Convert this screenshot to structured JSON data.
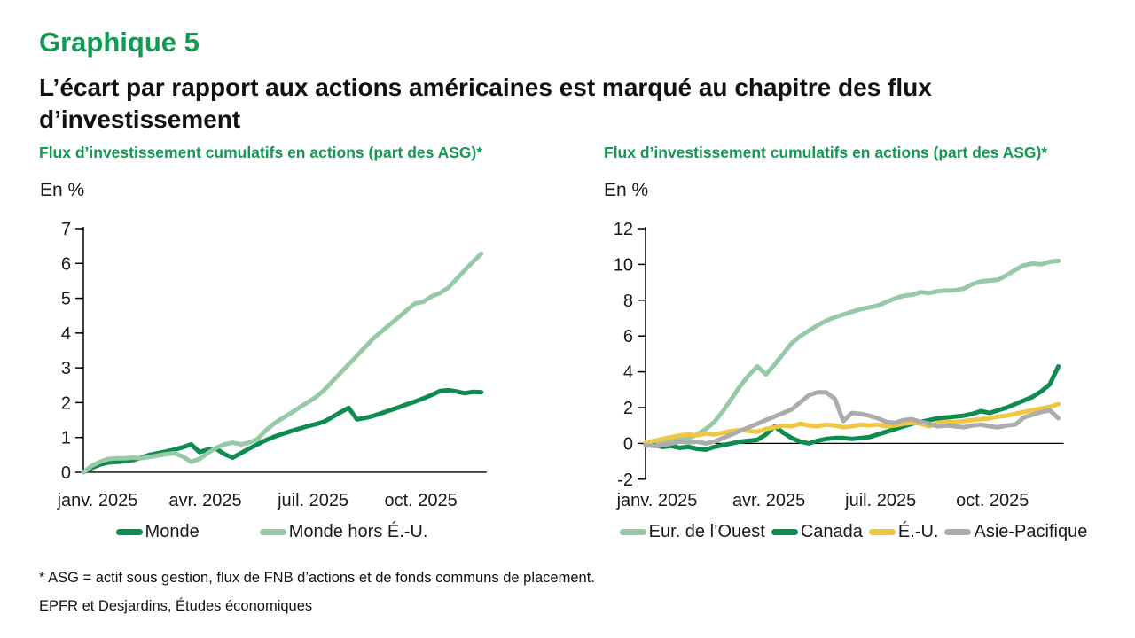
{
  "page": {
    "label": "Graphique 5",
    "title": "L’écart par rapport aux actions américaines est marqué au chapitre des flux d’investissement",
    "footnote": "* ASG = actif sous gestion, flux de FNB d’actions et de fonds communs de placement.",
    "source": "EPFR et Desjardins, Études économiques"
  },
  "colors": {
    "title_green": "#119A50",
    "dark_green": "#0E8B4F",
    "light_green": "#96C9A5",
    "yellow": "#EFC743",
    "gray": "#ACACAC",
    "axis_black": "#000000",
    "text_black": "#1A1A1A"
  },
  "chart_data": [
    {
      "type": "line",
      "title": "Flux d’investissement cumulatifs en actions (part des ASG)*",
      "unit_label": "En %",
      "x_frequency": "weekly",
      "x_tick_labels": [
        "janv. 2025",
        "avr. 2025",
        "juil. 2025",
        "oct. 2025"
      ],
      "x_tick_weeks": [
        0,
        13,
        26,
        39
      ],
      "ylim": [
        0,
        7
      ],
      "y_ticks": [
        0,
        1,
        2,
        3,
        4,
        5,
        6,
        7
      ],
      "grid": false,
      "legend_position": "bottom",
      "series": [
        {
          "name": "Monde",
          "color_key": "dark_green",
          "values": [
            0,
            0.12,
            0.22,
            0.28,
            0.3,
            0.32,
            0.35,
            0.42,
            0.5,
            0.55,
            0.6,
            0.65,
            0.72,
            0.8,
            0.58,
            0.65,
            0.68,
            0.52,
            0.42,
            0.55,
            0.68,
            0.8,
            0.92,
            1.02,
            1.1,
            1.18,
            1.25,
            1.32,
            1.38,
            1.45,
            1.58,
            1.72,
            1.85,
            1.52,
            1.56,
            1.62,
            1.7,
            1.78,
            1.86,
            1.95,
            2.03,
            2.12,
            2.22,
            2.33,
            2.36,
            2.32,
            2.27,
            2.31,
            2.3
          ]
        },
        {
          "name": "Monde hors É.-U.",
          "color_key": "light_green",
          "values": [
            0,
            0.18,
            0.3,
            0.38,
            0.4,
            0.4,
            0.42,
            0.4,
            0.44,
            0.48,
            0.52,
            0.55,
            0.45,
            0.3,
            0.38,
            0.55,
            0.7,
            0.8,
            0.85,
            0.8,
            0.85,
            0.95,
            1.2,
            1.4,
            1.55,
            1.7,
            1.85,
            2.0,
            2.15,
            2.35,
            2.6,
            2.85,
            3.1,
            3.35,
            3.6,
            3.85,
            4.05,
            4.25,
            4.45,
            4.65,
            4.85,
            4.9,
            5.05,
            5.15,
            5.3,
            5.55,
            5.8,
            6.05,
            6.28
          ]
        }
      ]
    },
    {
      "type": "line",
      "title": "Flux d’investissement cumulatifs en actions (part des ASG)*",
      "unit_label": "En %",
      "x_frequency": "weekly",
      "x_tick_labels": [
        "janv. 2025",
        "avr. 2025",
        "juil. 2025",
        "oct. 2025"
      ],
      "x_tick_weeks": [
        0,
        13,
        26,
        39
      ],
      "ylim": [
        -2,
        12
      ],
      "y_ticks": [
        -2,
        0,
        2,
        4,
        6,
        8,
        10,
        12
      ],
      "grid": false,
      "legend_position": "bottom",
      "series": [
        {
          "name": "Eur. de l’Ouest",
          "color_key": "light_green",
          "values": [
            0,
            0.05,
            0.1,
            0.2,
            0.25,
            0.3,
            0.5,
            0.8,
            1.2,
            1.8,
            2.5,
            3.2,
            3.8,
            4.3,
            3.85,
            4.4,
            5.0,
            5.6,
            6.0,
            6.3,
            6.6,
            6.85,
            7.05,
            7.2,
            7.35,
            7.5,
            7.6,
            7.7,
            7.9,
            8.1,
            8.25,
            8.3,
            8.45,
            8.4,
            8.5,
            8.55,
            8.55,
            8.65,
            8.9,
            9.05,
            9.1,
            9.15,
            9.4,
            9.7,
            9.95,
            10.05,
            10.0,
            10.15,
            10.2
          ]
        },
        {
          "name": "Canada",
          "color_key": "dark_green",
          "values": [
            -0.05,
            -0.1,
            -0.2,
            -0.15,
            -0.25,
            -0.2,
            -0.3,
            -0.35,
            -0.2,
            -0.1,
            0.0,
            0.1,
            0.15,
            0.2,
            0.5,
            0.95,
            0.6,
            0.3,
            0.1,
            0.0,
            0.15,
            0.25,
            0.3,
            0.3,
            0.25,
            0.3,
            0.35,
            0.5,
            0.65,
            0.8,
            0.95,
            1.1,
            1.2,
            1.3,
            1.4,
            1.45,
            1.5,
            1.55,
            1.65,
            1.8,
            1.7,
            1.85,
            2.0,
            2.2,
            2.4,
            2.6,
            2.9,
            3.3,
            4.3
          ]
        },
        {
          "name": "É.-U.",
          "color_key": "yellow",
          "values": [
            0.05,
            0.15,
            0.25,
            0.35,
            0.45,
            0.5,
            0.45,
            0.55,
            0.5,
            0.6,
            0.7,
            0.75,
            0.7,
            0.65,
            0.8,
            0.9,
            1.0,
            0.95,
            1.1,
            1.0,
            0.95,
            1.05,
            1.0,
            0.9,
            0.95,
            1.05,
            1.0,
            1.05,
            0.95,
            1.0,
            1.1,
            1.15,
            1.1,
            0.95,
            1.15,
            1.2,
            1.2,
            1.25,
            1.3,
            1.35,
            1.4,
            1.5,
            1.55,
            1.65,
            1.75,
            1.85,
            1.95,
            2.05,
            2.2
          ]
        },
        {
          "name": "Asie-Pacifique",
          "color_key": "gray",
          "values": [
            -0.1,
            -0.15,
            -0.1,
            0.0,
            0.1,
            0.05,
            0.1,
            0.0,
            0.1,
            0.3,
            0.5,
            0.7,
            0.9,
            1.1,
            1.3,
            1.5,
            1.7,
            1.9,
            2.3,
            2.7,
            2.85,
            2.85,
            2.5,
            1.25,
            1.7,
            1.65,
            1.55,
            1.4,
            1.2,
            1.15,
            1.3,
            1.35,
            1.2,
            1.1,
            0.95,
            1.0,
            0.95,
            0.9,
            1.0,
            1.05,
            0.95,
            0.9,
            1.0,
            1.05,
            1.45,
            1.6,
            1.75,
            1.85,
            1.4
          ]
        }
      ]
    }
  ]
}
